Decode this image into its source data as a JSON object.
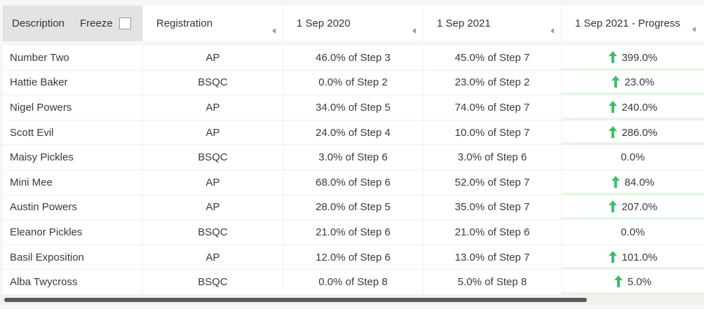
{
  "header": {
    "description": "Description",
    "freeze": "Freeze",
    "registration": "Registration",
    "col_2020": "1 Sep 2020",
    "col_2021": "1 Sep 2021",
    "col_progress": "1 Sep 2021 - Progress"
  },
  "colors": {
    "progress_up": "#3cbf66",
    "progress_bar": "#e2f7e4"
  },
  "rows": [
    {
      "name": "Number Two",
      "reg": "AP",
      "y2020": "46.0% of Step 3",
      "y2021": "45.0% of Step 7",
      "progress": "399.0%",
      "up": true
    },
    {
      "name": "Hattie Baker",
      "reg": "BSQC",
      "y2020": "0.0% of Step 2",
      "y2021": "23.0% of Step 2",
      "progress": "23.0%",
      "up": true
    },
    {
      "name": "Nigel Powers",
      "reg": "AP",
      "y2020": "34.0% of Step 5",
      "y2021": "74.0% of Step 7",
      "progress": "240.0%",
      "up": true
    },
    {
      "name": "Scott Evil",
      "reg": "AP",
      "y2020": "24.0% of Step 4",
      "y2021": "10.0% of Step 7",
      "progress": "286.0%",
      "up": true
    },
    {
      "name": "Maisy Pickles",
      "reg": "BSQC",
      "y2020": "3.0% of Step 6",
      "y2021": "3.0% of Step 6",
      "progress": "0.0%",
      "up": false
    },
    {
      "name": "Mini Mee",
      "reg": "AP",
      "y2020": "68.0% of Step 6",
      "y2021": "52.0% of Step 7",
      "progress": "84.0%",
      "up": true
    },
    {
      "name": "Austin Powers",
      "reg": "AP",
      "y2020": "28.0% of Step 5",
      "y2021": "35.0% of Step 7",
      "progress": "207.0%",
      "up": true
    },
    {
      "name": "Eleanor Pickles",
      "reg": "BSQC",
      "y2020": "21.0% of Step 6",
      "y2021": "21.0% of Step 6",
      "progress": "0.0%",
      "up": false
    },
    {
      "name": "Basil Exposition",
      "reg": "AP",
      "y2020": "12.0% of Step 6",
      "y2021": "13.0% of Step 7",
      "progress": "101.0%",
      "up": true
    },
    {
      "name": "Alba Twycross",
      "reg": "BSQC",
      "y2020": "0.0% of Step 8",
      "y2021": "5.0% of Step 8",
      "progress": "5.0%",
      "up": true
    }
  ]
}
